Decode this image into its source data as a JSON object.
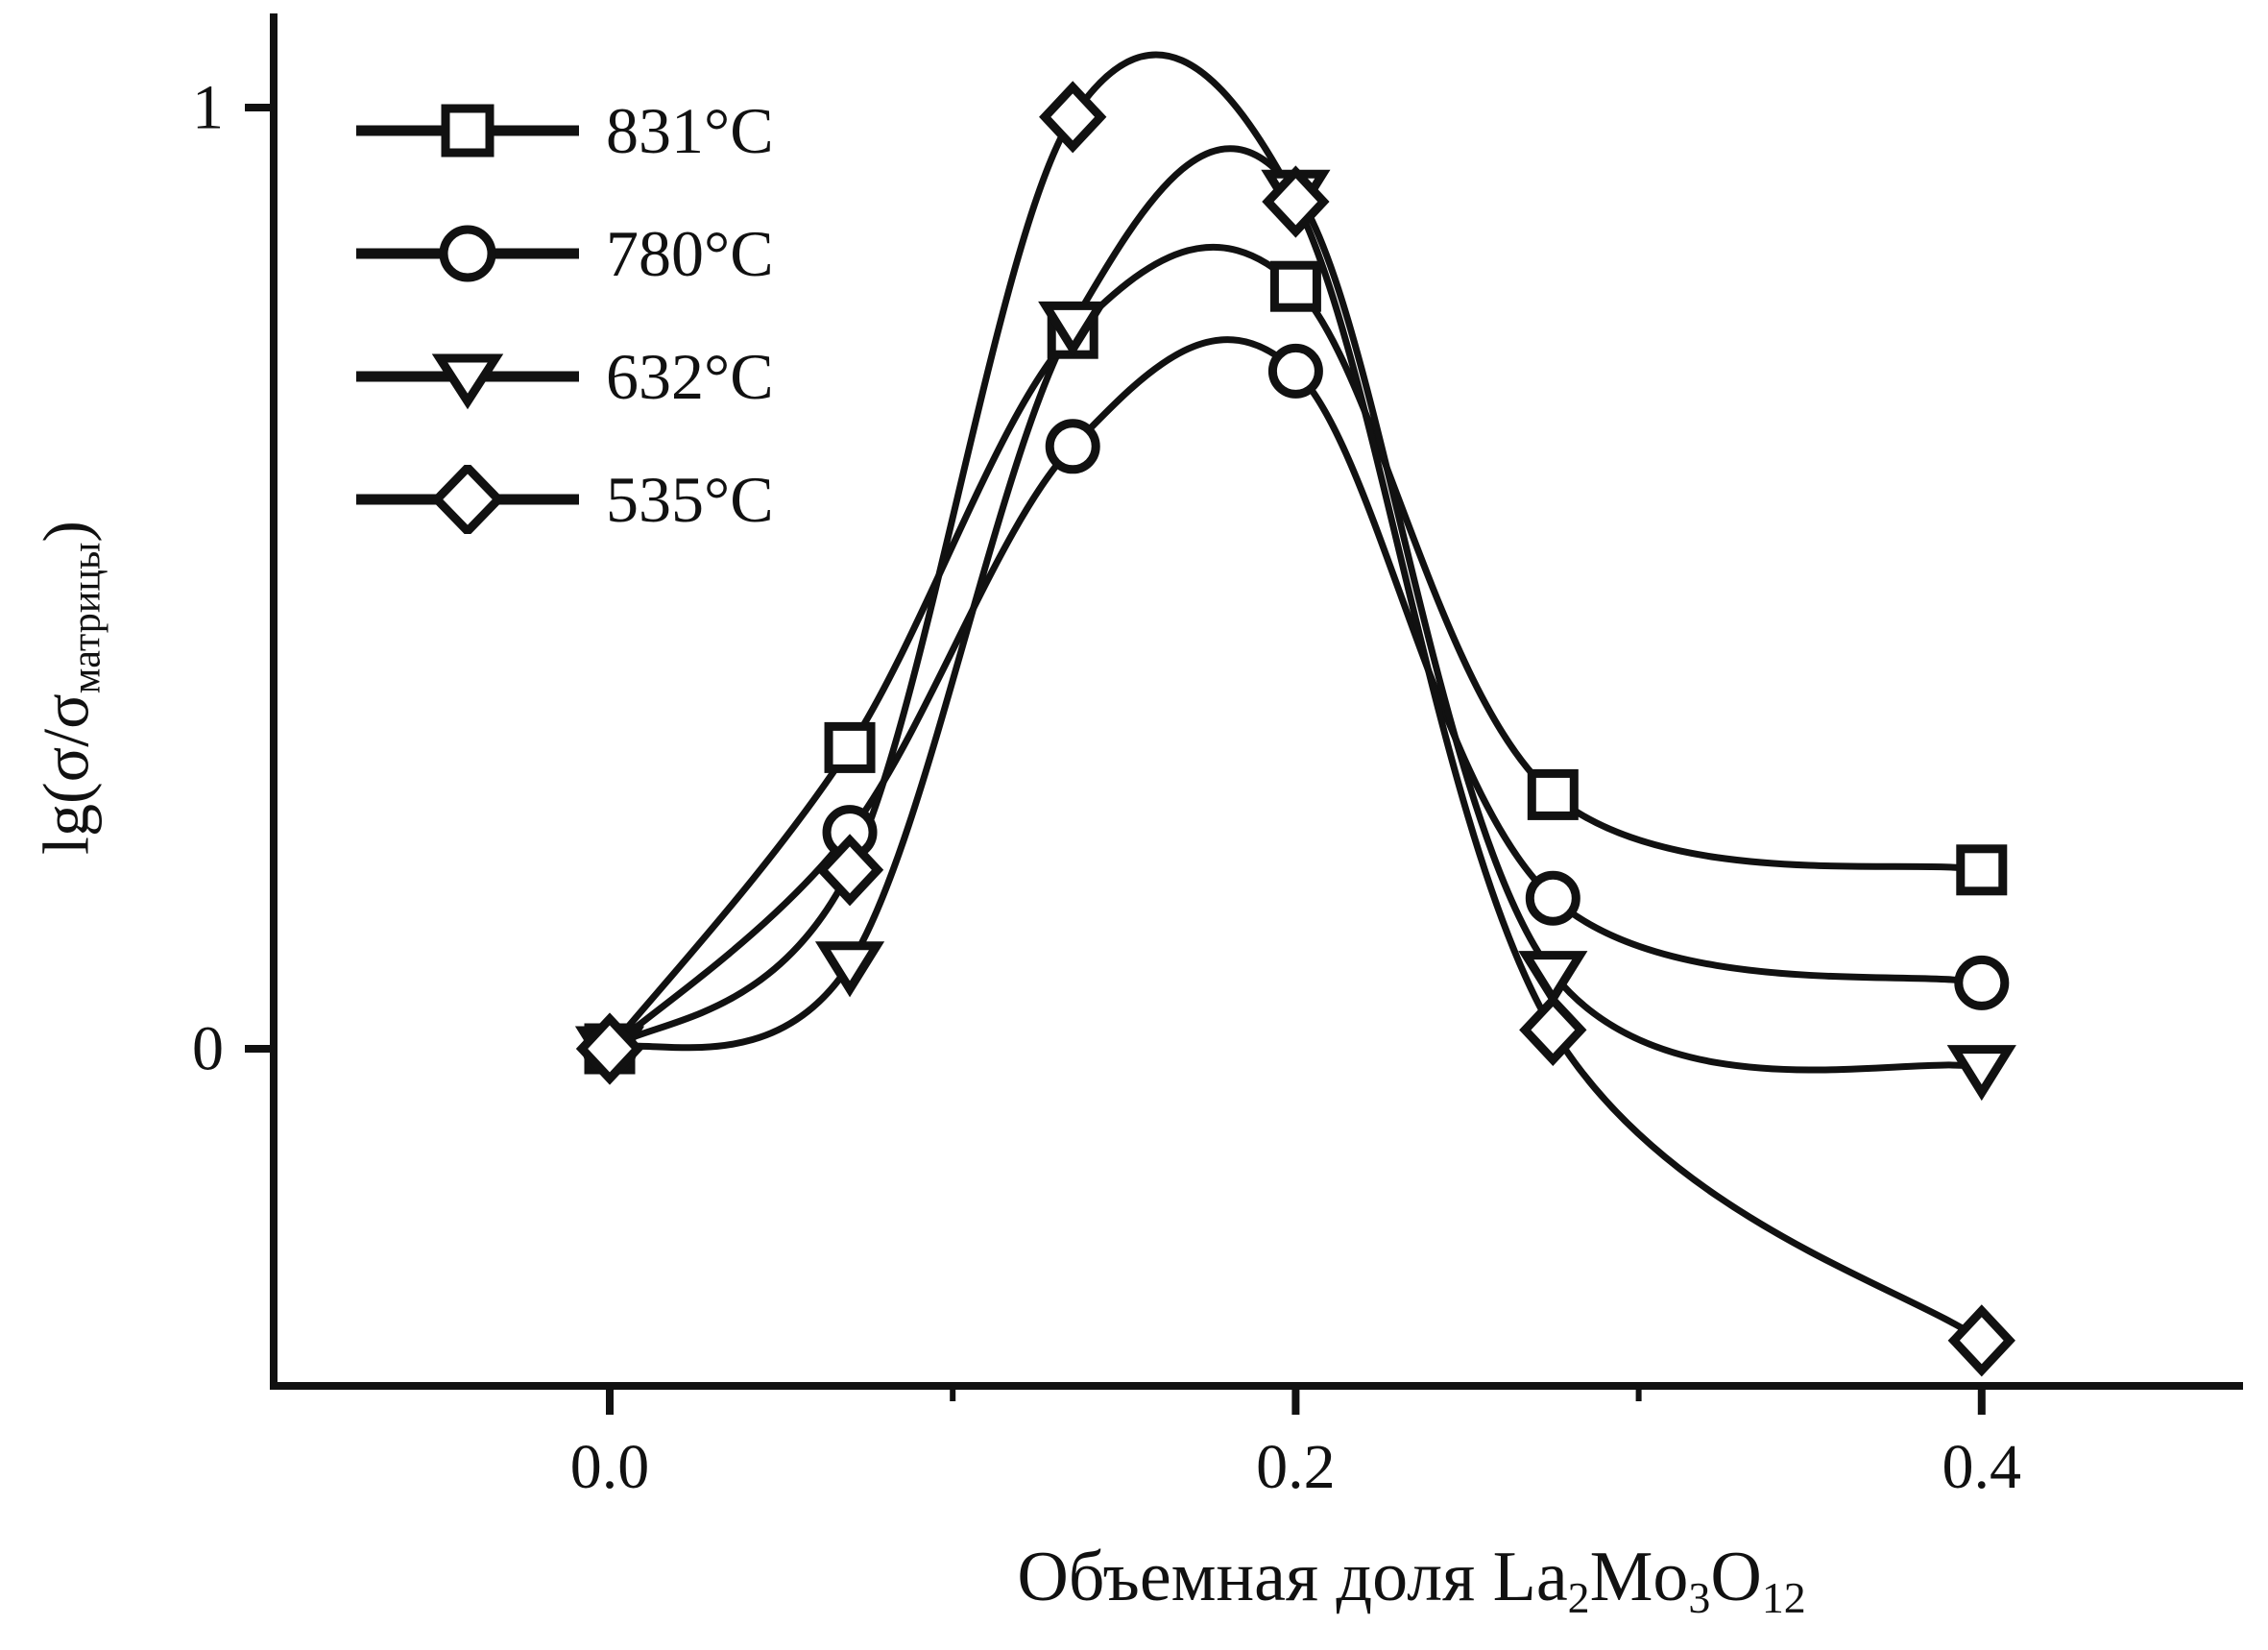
{
  "chart_data": {
    "type": "line",
    "title": "",
    "xlabel": "Объемная доля La2Mo3O12",
    "ylabel": "lg(σ/σ_матрицы)",
    "x": [
      0.0,
      0.07,
      0.135,
      0.2,
      0.275,
      0.4
    ],
    "series": [
      {
        "name": "831°C",
        "marker": "square",
        "values": [
          0.0,
          0.32,
          0.76,
          0.81,
          0.27,
          0.19
        ]
      },
      {
        "name": "780°C",
        "marker": "circle",
        "values": [
          0.0,
          0.23,
          0.64,
          0.72,
          0.16,
          0.07
        ]
      },
      {
        "name": "632°C",
        "marker": "triangle-down",
        "values": [
          0.0,
          0.09,
          0.77,
          0.91,
          0.08,
          -0.02
        ]
      },
      {
        "name": "535°C",
        "marker": "diamond",
        "values": [
          0.0,
          0.19,
          0.99,
          0.9,
          0.02,
          -0.31
        ]
      }
    ],
    "xticks": [
      {
        "value": 0.0,
        "label": "0.0"
      },
      {
        "value": 0.2,
        "label": "0.2"
      },
      {
        "value": 0.4,
        "label": "0.4"
      }
    ],
    "xticks_minor": [
      0.1,
      0.3
    ],
    "yticks": [
      {
        "value": 0,
        "label": "0"
      },
      {
        "value": 1,
        "label": "1"
      }
    ],
    "xlim": [
      -0.098,
      0.476
    ],
    "ylim": [
      -0.36,
      1.1
    ],
    "grid": false,
    "legend_position": "top-left",
    "line_color": "#111111",
    "marker_fill": "#ffffff",
    "background": "#ffffff"
  },
  "labels": {
    "ylabel_main": "lg(σ/σ",
    "ylabel_sub": "матрицы",
    "ylabel_close": ")",
    "xlabel_p1": "Объемная доля La",
    "xlabel_s1": "2",
    "xlabel_p2": "Mo",
    "xlabel_s2": "3",
    "xlabel_p3": "O",
    "xlabel_s3": "12"
  }
}
